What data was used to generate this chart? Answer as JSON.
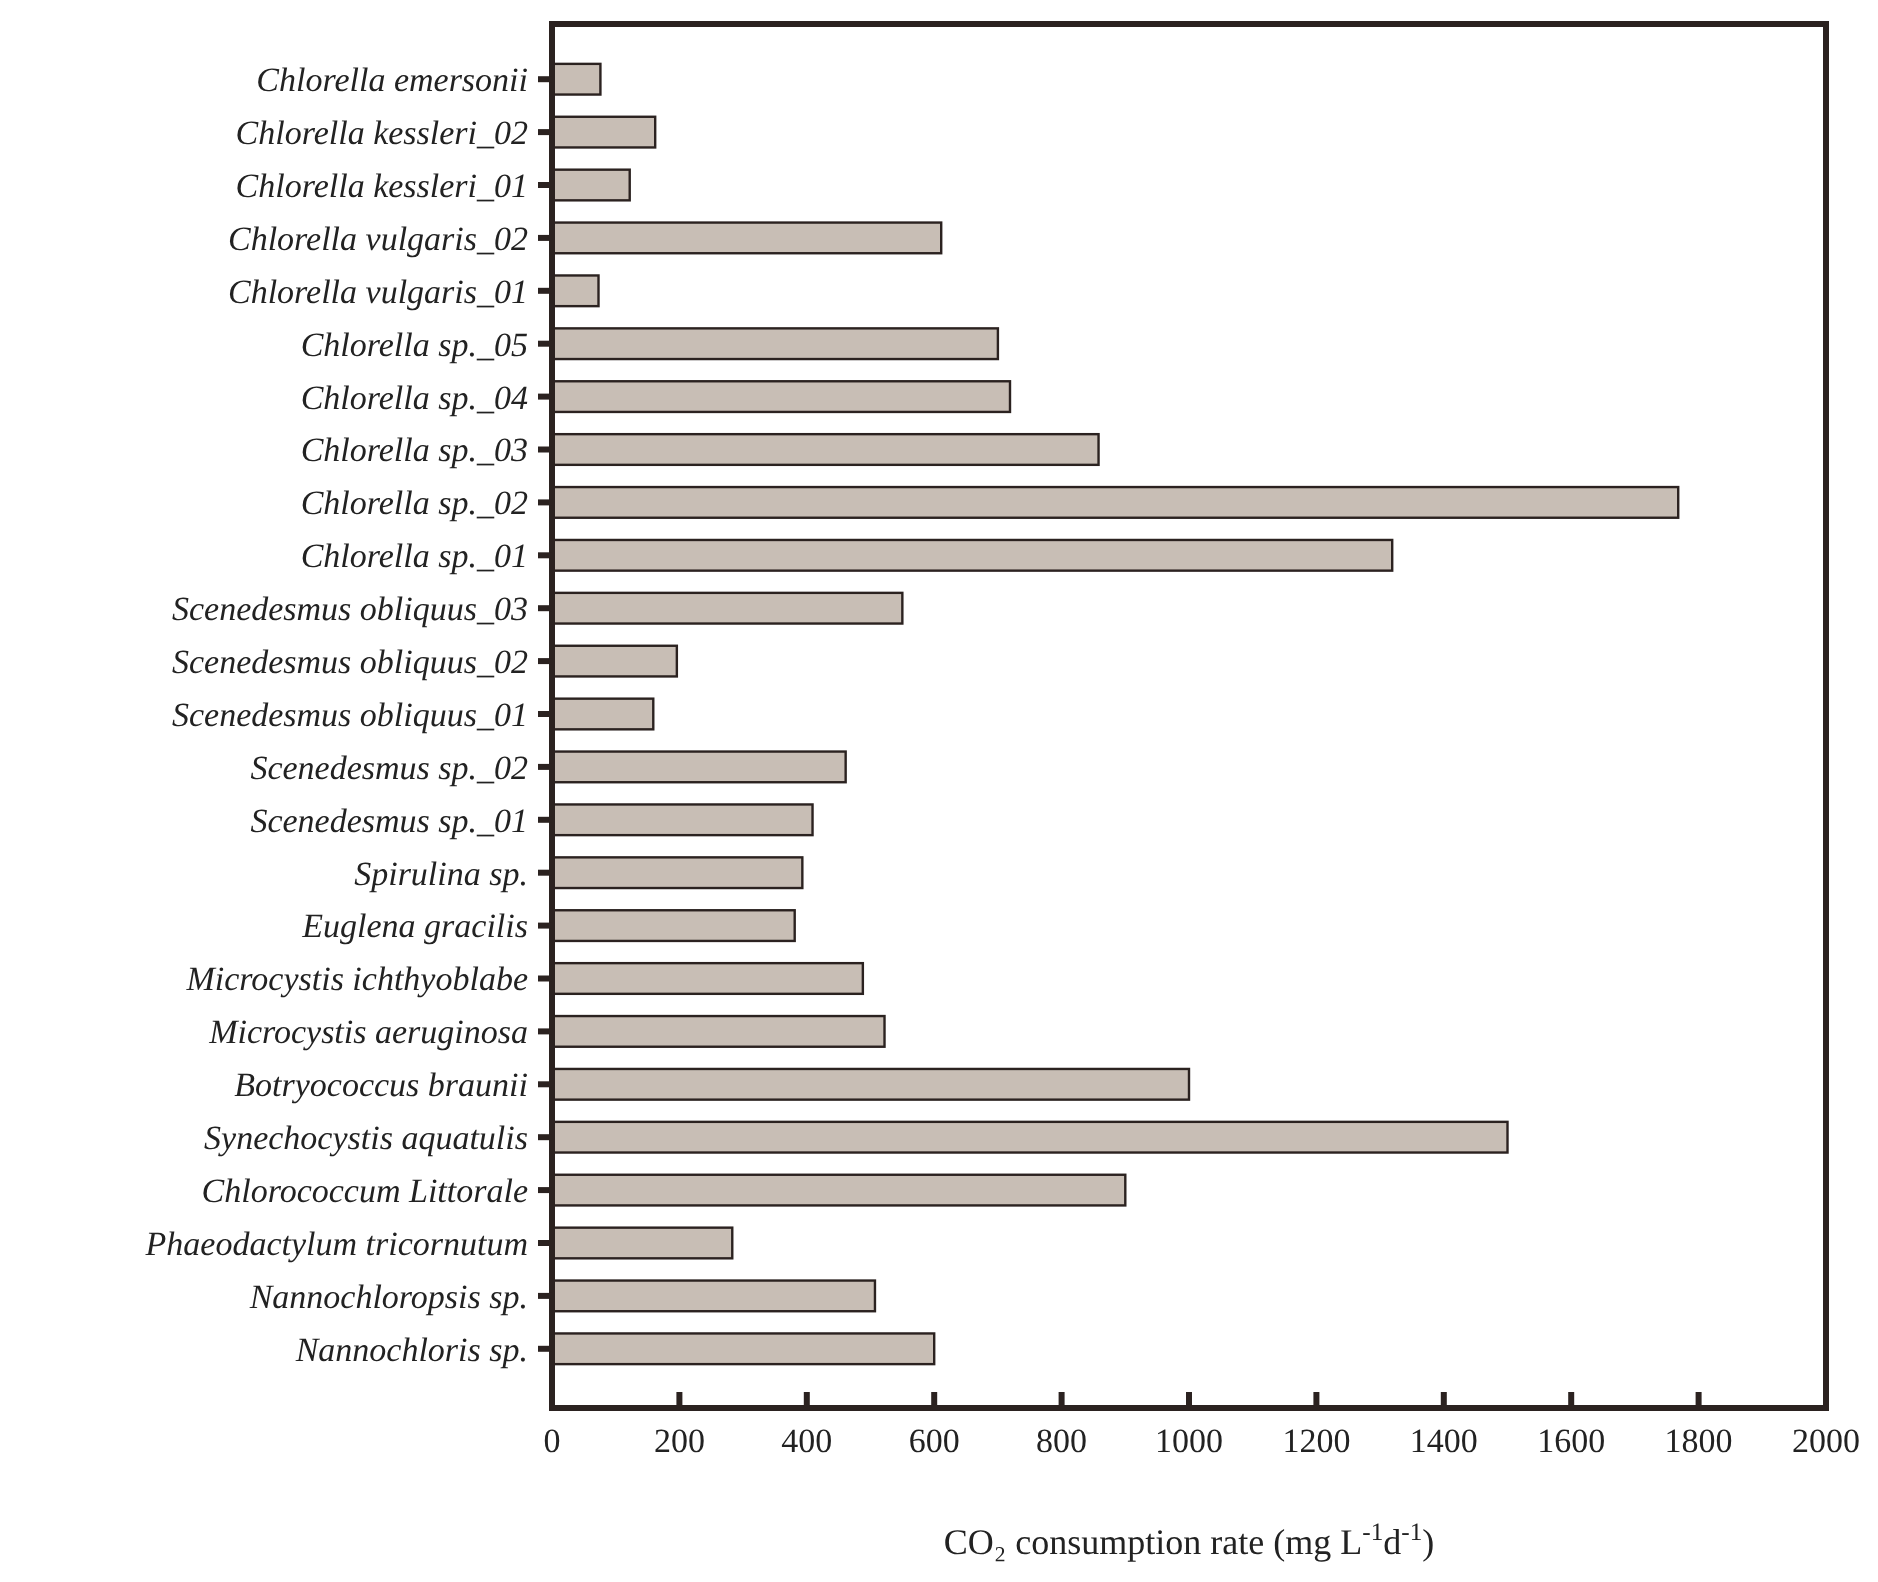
{
  "chart_data": {
    "type": "bar",
    "orientation": "horizontal",
    "xlabel": "CO₂ consumption rate (mg L$^{-1}$d$^{-1}$)",
    "categories": [
      "Chlorella emersonii",
      "Chlorella kessleri_02",
      "Chlorella kessleri_01",
      "Chlorella vulgaris_02",
      "Chlorella vulgaris_01",
      "Chlorella sp._05",
      "Chlorella sp._04",
      "Chlorella sp._03",
      "Chlorella sp._02",
      "Chlorella sp._01",
      "Scenedesmus obliquus_03",
      "Scenedesmus obliquus_02",
      "Scenedesmus obliquus_01",
      "Scenedesmus sp._02",
      "Scenedesmus sp._01",
      "Spirulina sp.",
      "Euglena gracilis",
      "Microcystis ichthyoblabe",
      "Microcystis aeruginosa",
      "Botryococcus braunii",
      "Synechocystis aquatulis",
      "Chlorococcum Littorale",
      "Phaeodactylum tricornutum",
      "Nannochloropsis sp.",
      "Nannochloris sp."
    ],
    "values": [
      76,
      162,
      122,
      611,
      73,
      700,
      719,
      858,
      1768,
      1319,
      550,
      196,
      159,
      461,
      409,
      393,
      381,
      488,
      522,
      1000,
      1500,
      900,
      283,
      507,
      600
    ],
    "color": "#c8beb5",
    "xlim": [
      0,
      2000
    ],
    "xticks": [
      0,
      200,
      400,
      600,
      800,
      1000,
      1200,
      1400,
      1600,
      1800,
      2000
    ],
    "grid": false
  }
}
